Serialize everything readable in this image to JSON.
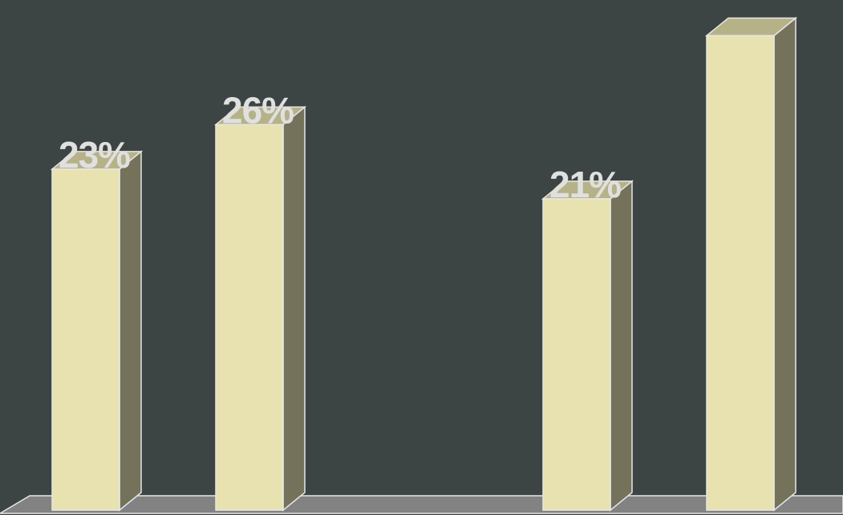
{
  "chart_data": {
    "type": "bar",
    "style": "3d-column",
    "title": "",
    "xlabel": "",
    "ylabel": "",
    "categories": [
      "",
      "",
      "",
      "",
      ""
    ],
    "values": [
      23,
      26,
      null,
      21,
      32
    ],
    "data_labels": [
      "23%",
      "26%",
      "",
      "21%",
      ""
    ],
    "ylim": [
      0,
      33
    ],
    "grid": false,
    "legend": "none"
  },
  "colors": {
    "background": "#3d4444",
    "bar_front": "#e8e2b0",
    "bar_side": "#74725a",
    "bar_top": "#b6b288",
    "bar_edge": "#e6e6e6",
    "floor": "#828282",
    "label_text": "#e0e0e0"
  }
}
